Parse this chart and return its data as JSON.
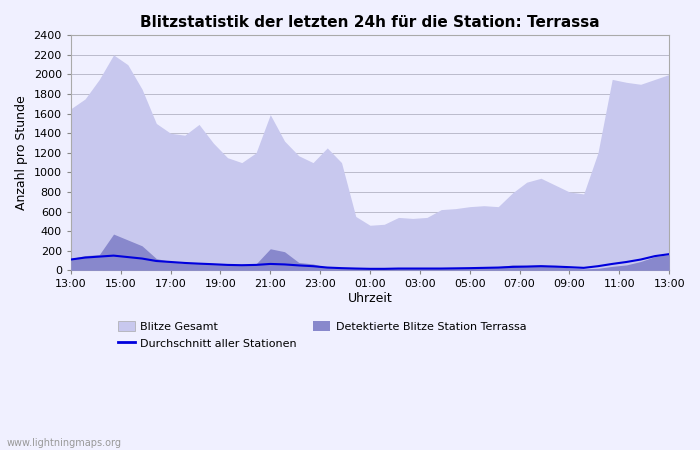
{
  "title": "Blitzstatistik der letzten 24h für die Station: Terrassa",
  "xlabel": "Uhrzeit",
  "ylabel": "Anzahl pro Stunde",
  "watermark": "www.lightningmaps.org",
  "ylim": [
    0,
    2400
  ],
  "yticks": [
    0,
    200,
    400,
    600,
    800,
    1000,
    1200,
    1400,
    1600,
    1800,
    2000,
    2200,
    2400
  ],
  "xtick_labels": [
    "13:00",
    "15:00",
    "17:00",
    "19:00",
    "21:00",
    "23:00",
    "01:00",
    "03:00",
    "05:00",
    "07:00",
    "09:00",
    "11:00",
    "13:00"
  ],
  "bg_color": "#f0f0ff",
  "grid_color": "#bbbbcc",
  "gesamt_color": "#c8c8ee",
  "detected_color": "#8888cc",
  "avg_color": "#0000dd",
  "gesamt": [
    1650,
    1750,
    1950,
    2200,
    2100,
    1850,
    1500,
    1400,
    1380,
    1490,
    1300,
    1150,
    1100,
    1200,
    1590,
    1320,
    1170,
    1100,
    1250,
    1100,
    550,
    460,
    470,
    540,
    530,
    540,
    620,
    630,
    650,
    660,
    650,
    790,
    900,
    940,
    870,
    800,
    780,
    1200,
    1950,
    1920,
    1900,
    1950,
    2000
  ],
  "detected": [
    120,
    150,
    160,
    370,
    310,
    250,
    120,
    90,
    70,
    80,
    70,
    60,
    55,
    65,
    220,
    190,
    80,
    65,
    30,
    20,
    18,
    15,
    18,
    22,
    20,
    20,
    20,
    22,
    25,
    30,
    35,
    55,
    50,
    55,
    40,
    25,
    15,
    20,
    40,
    55,
    90,
    140,
    160
  ],
  "avg_line": [
    110,
    130,
    140,
    150,
    135,
    120,
    95,
    85,
    75,
    68,
    62,
    55,
    52,
    55,
    65,
    60,
    50,
    42,
    28,
    22,
    18,
    15,
    15,
    18,
    18,
    18,
    18,
    20,
    22,
    25,
    28,
    35,
    38,
    42,
    38,
    32,
    25,
    42,
    65,
    85,
    110,
    145,
    165
  ]
}
